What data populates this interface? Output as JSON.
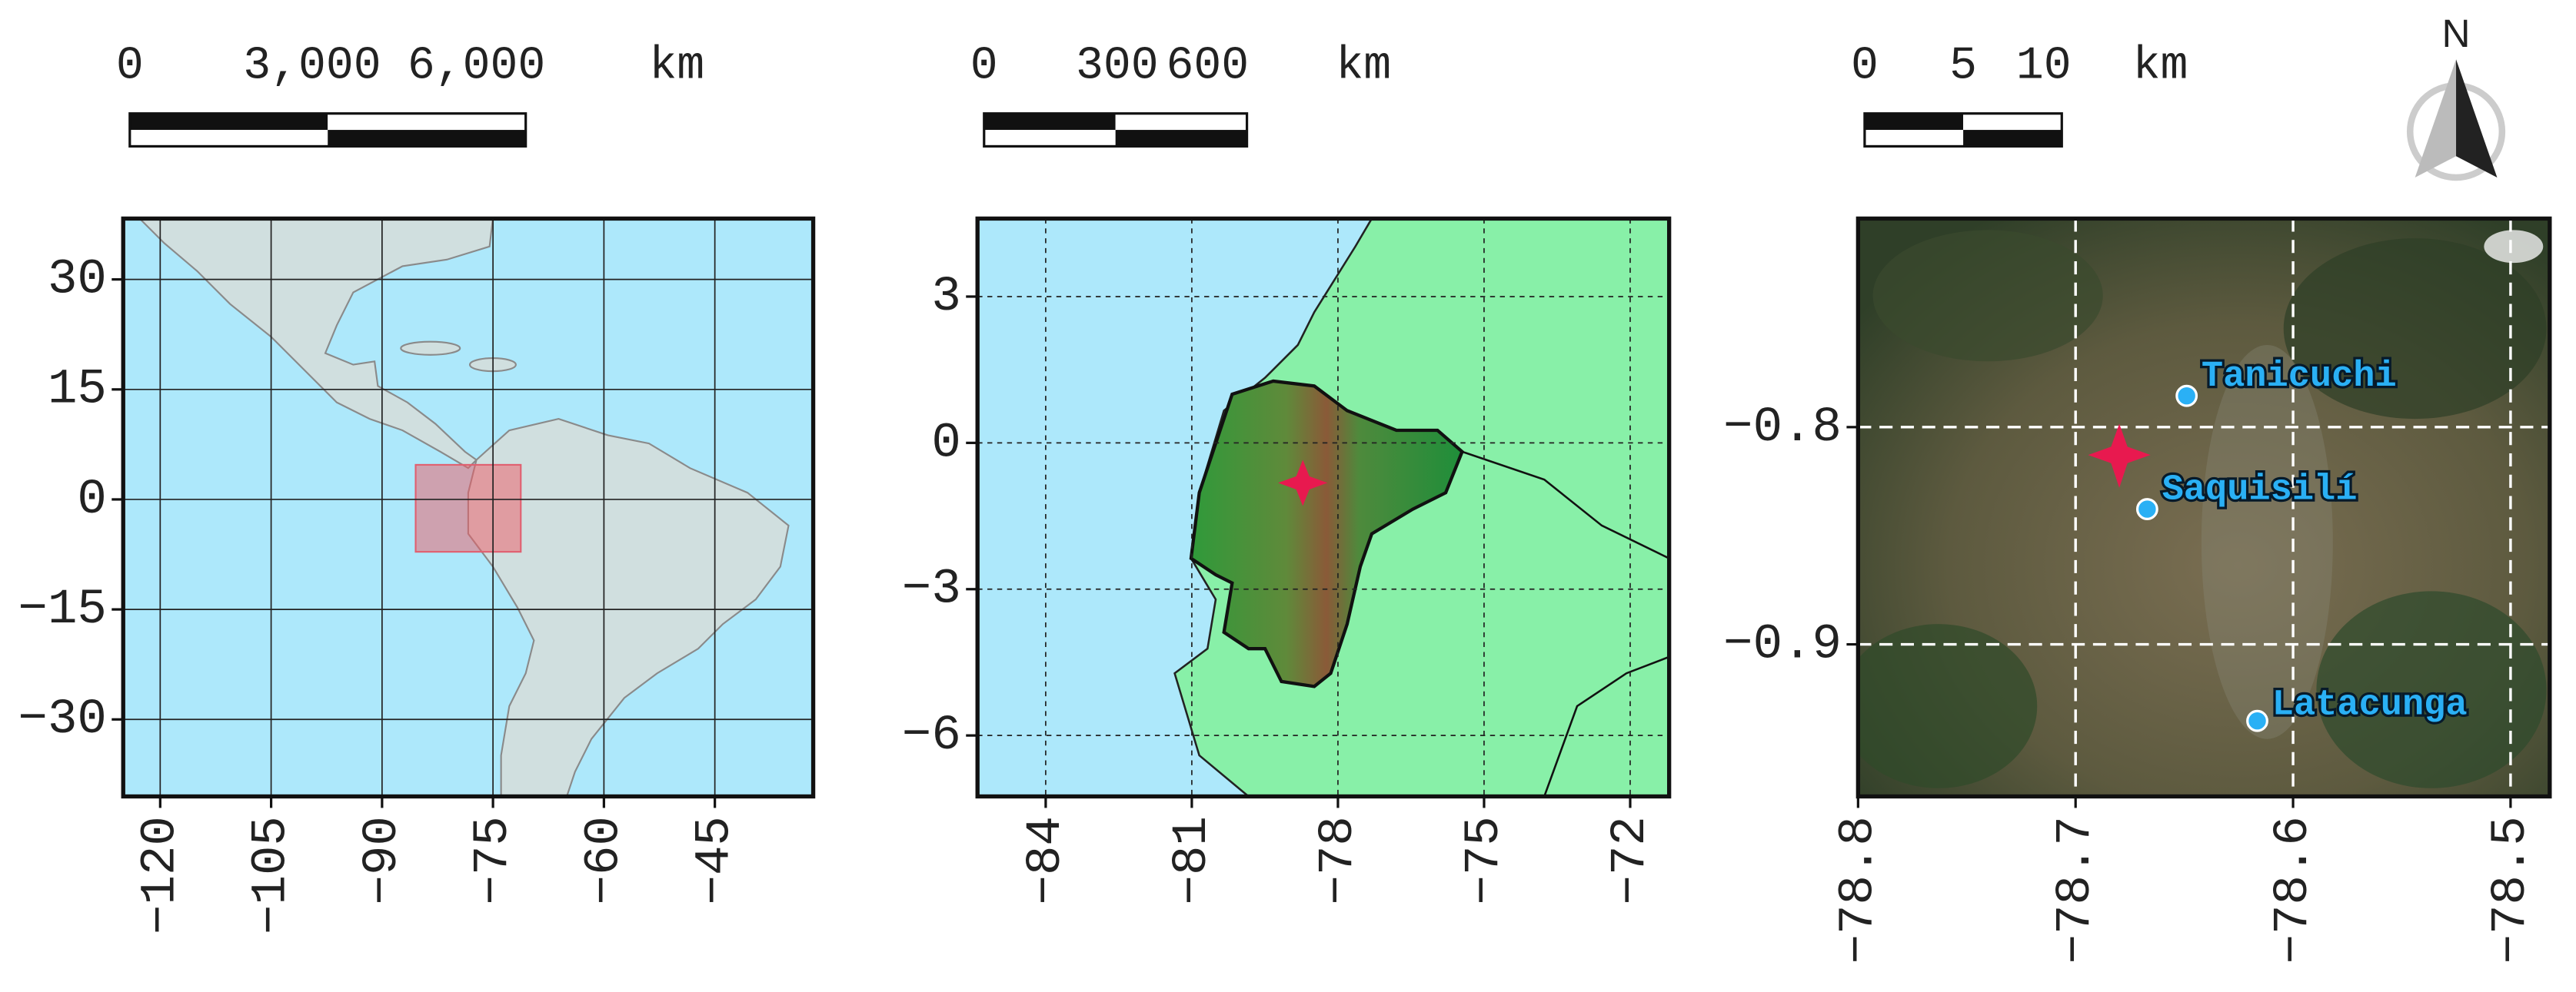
{
  "panels": [
    {
      "scale_bar": {
        "labels": [
          "0",
          "3,000",
          "6,000"
        ],
        "unit": "km"
      },
      "xlim": [
        -125,
        -31.7
      ],
      "ylim": [
        -40.5,
        38.3
      ],
      "xticks": [
        {
          "value": -120,
          "label": "−120"
        },
        {
          "value": -105,
          "label": "−105"
        },
        {
          "value": -90,
          "label": "−90"
        },
        {
          "value": -75,
          "label": "−75"
        },
        {
          "value": -60,
          "label": "−60"
        },
        {
          "value": -45,
          "label": "−45"
        }
      ],
      "yticks": [
        30,
        15,
        0,
        {
          "value": -15,
          "label": "−15"
        },
        {
          "value": -30,
          "label": "−30"
        }
      ]
    },
    {
      "scale_bar": {
        "labels": [
          "0",
          "300",
          "600"
        ],
        "unit": "km"
      },
      "xlim": [
        -85.4,
        -71.2
      ],
      "ylim": [
        -7.25,
        4.6
      ],
      "xticks": [
        {
          "value": -84,
          "label": "−84"
        },
        {
          "value": -81,
          "label": "−81"
        },
        {
          "value": -78,
          "label": "−78"
        },
        {
          "value": -75,
          "label": "−75"
        },
        {
          "value": -72,
          "label": "−72"
        }
      ],
      "yticks": [
        3,
        0,
        {
          "value": -3,
          "label": "−3"
        },
        {
          "value": -6,
          "label": "−6"
        }
      ]
    },
    {
      "scale_bar": {
        "labels": [
          "0",
          "5",
          "10"
        ],
        "unit": "km"
      },
      "xlim": [
        -78.8,
        -78.482
      ],
      "ylim": [
        -0.97,
        -0.704
      ],
      "xticks": [
        {
          "value": -78.8,
          "label": "−78.8"
        },
        {
          "value": -78.7,
          "label": "−78.7"
        },
        {
          "value": -78.6,
          "label": "−78.6"
        },
        {
          "value": -78.5,
          "label": "−78.5"
        }
      ],
      "yticks": [
        {
          "value": -0.8,
          "label": "−0.8"
        },
        {
          "value": -0.9,
          "label": "−0.9"
        }
      ],
      "places": [
        "Tanicuchi",
        "Saquisilí",
        "Latacunga"
      ]
    }
  ],
  "north_arrow": "N"
}
